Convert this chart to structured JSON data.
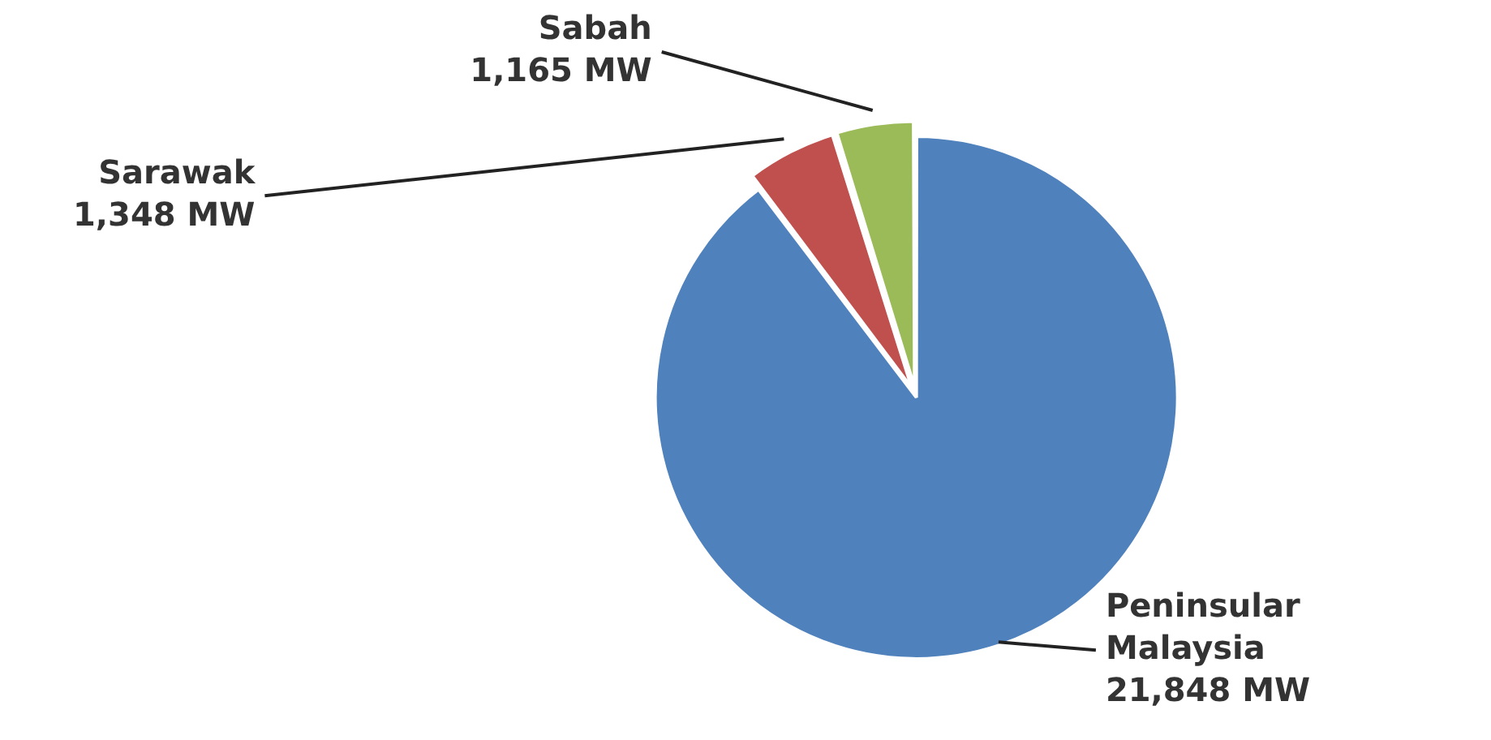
{
  "chart_data": {
    "type": "pie",
    "categories": [
      "Peninsular Malaysia",
      "Sarawak",
      "Sabah"
    ],
    "values": [
      21848,
      1348,
      1165
    ],
    "colors": [
      "#4f81bd",
      "#c0504d",
      "#9bbb59"
    ],
    "value_labels": [
      "21,848 MW",
      "1,348 MW",
      "1,165 MW"
    ],
    "legend": false
  }
}
